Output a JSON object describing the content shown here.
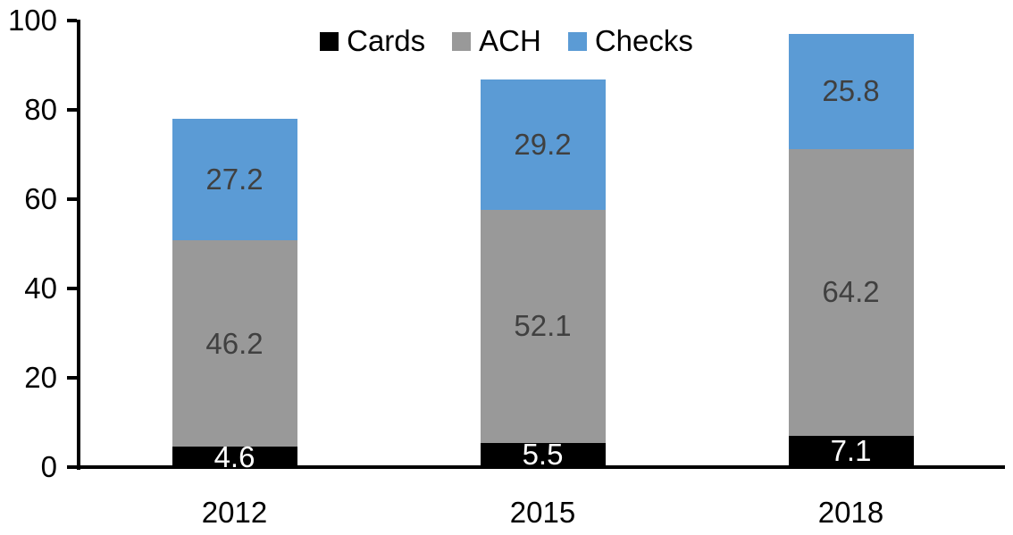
{
  "chart_data": {
    "type": "bar",
    "stacked": true,
    "title": "",
    "xlabel": "",
    "ylabel": "",
    "categories": [
      "2012",
      "2015",
      "2018"
    ],
    "series": [
      {
        "name": "Cards",
        "color": "#000000",
        "label_color": "#ffffff",
        "values": [
          4.6,
          5.5,
          7.1
        ]
      },
      {
        "name": "ACH",
        "color": "#999999",
        "label_color": "#404040",
        "values": [
          46.2,
          52.1,
          64.2
        ]
      },
      {
        "name": "Checks",
        "color": "#5b9bd5",
        "label_color": "#404040",
        "values": [
          27.2,
          29.2,
          25.8
        ]
      }
    ],
    "ylim": [
      0,
      100
    ],
    "yticks": [
      "0",
      "20",
      "40",
      "60",
      "80",
      "100"
    ],
    "grid": false,
    "legend_position": "top-center",
    "axis_color": "#000000"
  }
}
